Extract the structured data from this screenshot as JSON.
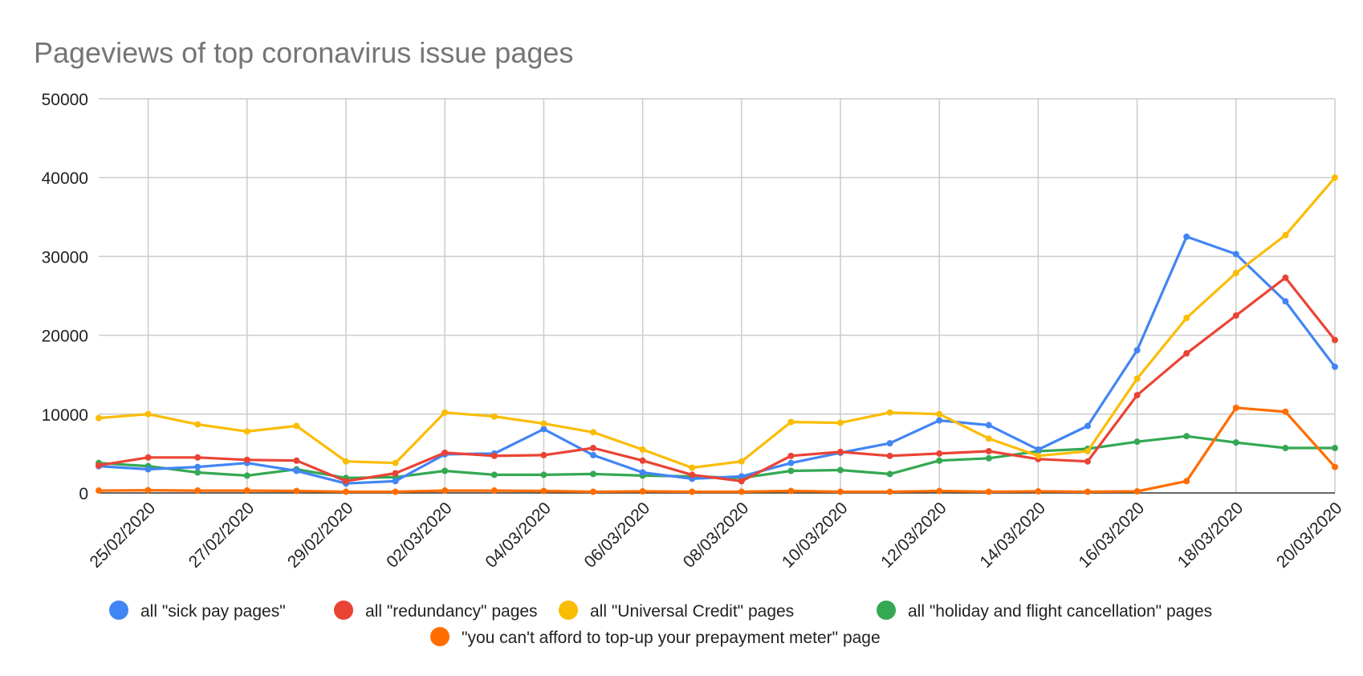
{
  "chart_data": {
    "type": "line",
    "title": "Pageviews of top coronavirus issue pages",
    "xlabel": "",
    "ylabel": "",
    "ylim": [
      0,
      50000
    ],
    "y_ticks": [
      0,
      10000,
      20000,
      30000,
      40000,
      50000
    ],
    "x": [
      "24/02/2020",
      "25/02/2020",
      "26/02/2020",
      "27/02/2020",
      "28/02/2020",
      "29/02/2020",
      "01/03/2020",
      "02/03/2020",
      "03/03/2020",
      "04/03/2020",
      "05/03/2020",
      "06/03/2020",
      "07/03/2020",
      "08/03/2020",
      "09/03/2020",
      "10/03/2020",
      "11/03/2020",
      "12/03/2020",
      "13/03/2020",
      "14/03/2020",
      "15/03/2020",
      "16/03/2020",
      "17/03/2020",
      "18/03/2020",
      "19/03/2020",
      "20/03/2020"
    ],
    "x_tick_labels": [
      "25/02/2020",
      "27/02/2020",
      "29/02/2020",
      "02/03/2020",
      "04/03/2020",
      "06/03/2020",
      "08/03/2020",
      "10/03/2020",
      "12/03/2020",
      "14/03/2020",
      "16/03/2020",
      "18/03/2020",
      "20/03/2020"
    ],
    "grid": true,
    "legend_position": "bottom",
    "series": [
      {
        "name": "all \"sick pay pages\"",
        "color": "#4285F4",
        "values": [
          3400,
          3000,
          3300,
          3800,
          2800,
          1200,
          1500,
          4900,
          5000,
          8100,
          4800,
          2600,
          1800,
          2100,
          3800,
          5100,
          6300,
          9200,
          8600,
          5500,
          8500,
          18100,
          32500,
          30300,
          24300,
          16000
        ]
      },
      {
        "name": "all \"redundancy\" pages",
        "color": "#EA4335",
        "values": [
          3500,
          4500,
          4500,
          4200,
          4100,
          1500,
          2500,
          5100,
          4700,
          4800,
          5700,
          4100,
          2300,
          1500,
          4700,
          5200,
          4700,
          5000,
          5300,
          4300,
          4000,
          12400,
          17700,
          22500,
          27300,
          19400
        ]
      },
      {
        "name": "all \"Universal Credit\" pages",
        "color": "#FBBC04",
        "values": [
          9500,
          10000,
          8700,
          7800,
          8500,
          4000,
          3800,
          10200,
          9700,
          8800,
          7700,
          5500,
          3200,
          4000,
          9000,
          8900,
          10200,
          10000,
          6900,
          4700,
          5300,
          14500,
          22200,
          27900,
          32700,
          40000
        ]
      },
      {
        "name": "all \"holiday and flight cancellation\" pages",
        "color": "#34A853",
        "values": [
          3800,
          3400,
          2600,
          2200,
          3000,
          1900,
          2000,
          2800,
          2300,
          2300,
          2400,
          2200,
          2100,
          1900,
          2800,
          2900,
          2400,
          4100,
          4400,
          5300,
          5600,
          6500,
          7200,
          6400,
          5700,
          5700
        ]
      },
      {
        "name": "\"you can't afford to top-up your prepayment meter\" page",
        "color": "#FF6D01",
        "values": [
          300,
          350,
          300,
          300,
          250,
          150,
          150,
          300,
          300,
          250,
          150,
          200,
          150,
          150,
          250,
          150,
          150,
          250,
          150,
          200,
          150,
          200,
          1500,
          10800,
          10300,
          3300
        ]
      }
    ]
  }
}
